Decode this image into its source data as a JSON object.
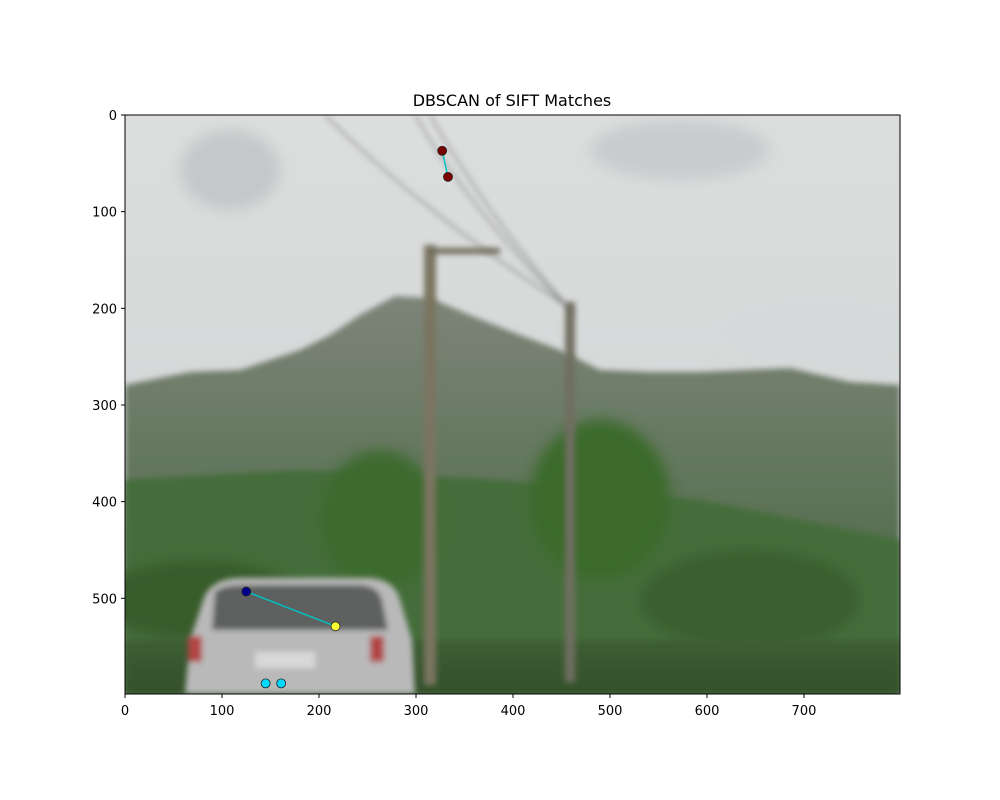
{
  "chart_data": {
    "type": "scatter",
    "title": "DBSCAN of SIFT Matches",
    "xlabel": "",
    "ylabel": "",
    "xlim": [
      0,
      799
    ],
    "ylim": [
      599,
      0
    ],
    "y_inverted": true,
    "x_ticks": [
      0,
      100,
      200,
      300,
      400,
      500,
      600,
      700
    ],
    "y_ticks": [
      0,
      100,
      200,
      300,
      400,
      500
    ],
    "grid": false,
    "legend": "none",
    "background": "blurred photograph of a road: grey car, utility poles, green mountain, overcast sky",
    "points": [
      {
        "x": 327,
        "y": 37,
        "color": "#7a0000"
      },
      {
        "x": 333,
        "y": 64,
        "color": "#7a0000"
      },
      {
        "x": 125,
        "y": 493,
        "color": "#00008b"
      },
      {
        "x": 217,
        "y": 529,
        "color": "#ffff33"
      },
      {
        "x": 145,
        "y": 588,
        "color": "#00d8ff"
      },
      {
        "x": 161,
        "y": 588,
        "color": "#00d8ff"
      }
    ],
    "match_lines": [
      {
        "from": [
          327,
          37
        ],
        "to": [
          333,
          64
        ],
        "color": "#00c0c0"
      },
      {
        "from": [
          125,
          493
        ],
        "to": [
          217,
          529
        ],
        "color": "#00c0c0"
      }
    ]
  }
}
